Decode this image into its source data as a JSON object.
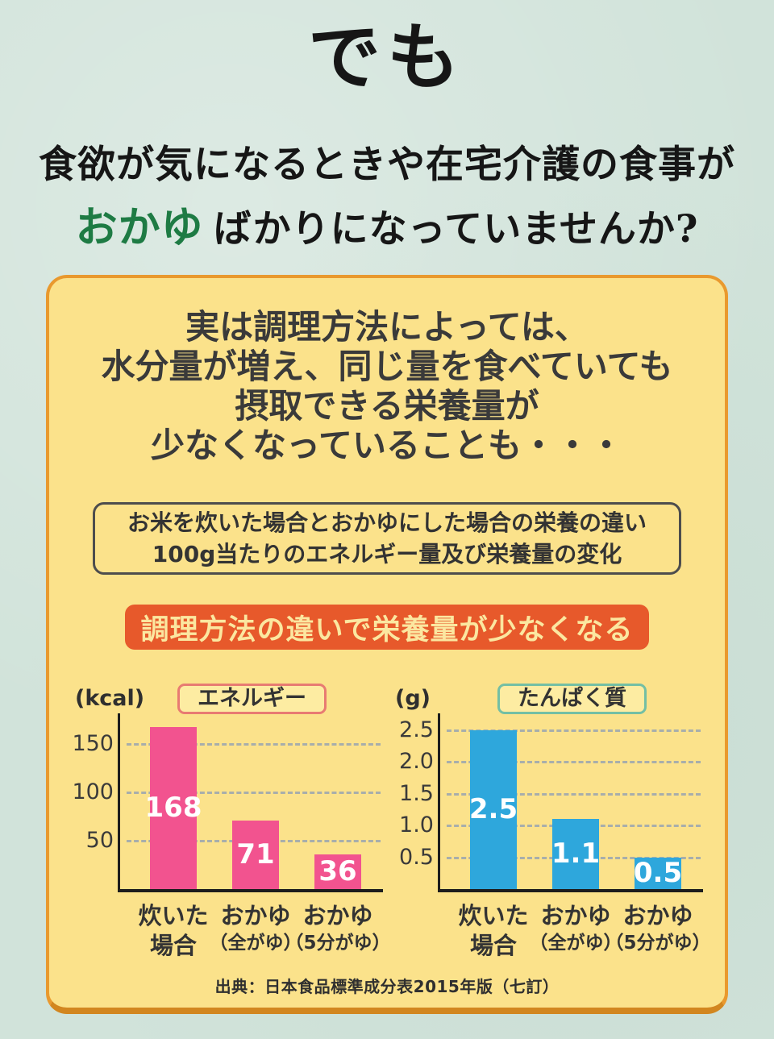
{
  "page": {
    "title_top": "でも",
    "intro_line1": "食欲が気になるときや在宅介護の食事が",
    "intro_highlight": "おかゆ",
    "intro_line2_rest": "ばかりになっていませんか?"
  },
  "card": {
    "headline_lines": [
      "実は調理方法によっては、",
      "水分量が増え、同じ量を食べていても",
      "摂取できる栄養量が",
      "少なくなっていることも・・・"
    ],
    "info_box": {
      "line1": "お米を炊いた場合とおかゆにした場合の栄養の違い",
      "line2": "100g当たりのエネルギー量及び栄養量の変化"
    },
    "banner": "調理方法の違いで栄養量が少なくなる",
    "source": "出典：日本食品標準成分表2015年版（七訂）"
  },
  "colors": {
    "page_bg": "#d1e3da",
    "card_bg": "#fbe28b",
    "card_border": "#e9992e",
    "banner_bg": "#e7592b",
    "banner_text": "#fbe7a0",
    "highlight_green": "#1e7b44"
  },
  "chart_data": [
    {
      "type": "bar",
      "title": "エネルギー",
      "unit": "(kcal)",
      "categories": [
        [
          "炊いた",
          "場合"
        ],
        [
          "おかゆ",
          "（全がゆ）"
        ],
        [
          "おかゆ",
          "（5分がゆ）"
        ]
      ],
      "values": [
        168,
        71,
        36
      ],
      "value_labels": [
        "168",
        "71",
        "36"
      ],
      "ytick_values": [
        50,
        100,
        150
      ],
      "ytick_labels": [
        "50",
        "100",
        "150"
      ],
      "ylim": [
        0,
        182
      ],
      "grid": true,
      "bar_color": "#f2538f",
      "legend_border": "#e87b72",
      "legend_position": "top"
    },
    {
      "type": "bar",
      "title": "たんぱく質",
      "unit": "(g)",
      "categories": [
        [
          "炊いた",
          "場合"
        ],
        [
          "おかゆ",
          "（全がゆ）"
        ],
        [
          "おかゆ",
          "（5分がゆ）"
        ]
      ],
      "values": [
        2.5,
        1.1,
        0.5
      ],
      "value_labels": [
        "2.5",
        "1.1",
        "0.5"
      ],
      "ytick_values": [
        0.5,
        1.0,
        1.5,
        2.0,
        2.5
      ],
      "ytick_labels": [
        "0.5",
        "1.0",
        "1.5",
        "2.0",
        "2.5"
      ],
      "ylim": [
        0,
        2.76
      ],
      "grid": true,
      "bar_color": "#2ea7dc",
      "legend_border": "#74bfa4",
      "legend_position": "top"
    }
  ]
}
